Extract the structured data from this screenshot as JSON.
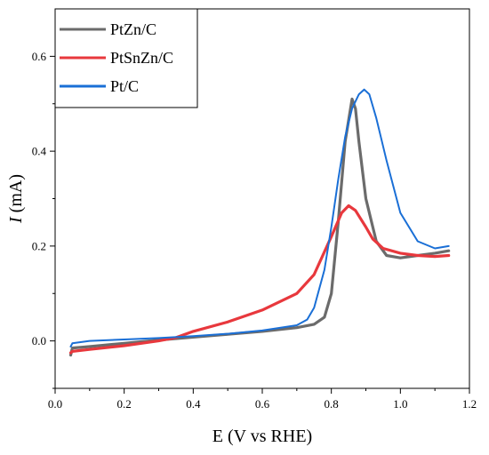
{
  "chart_data": {
    "type": "line",
    "xlabel": "E (V vs RHE)",
    "ylabel_italic": "I",
    "ylabel_rest": " (mA)",
    "xlim": [
      0.0,
      1.2
    ],
    "ylim": [
      -0.1,
      0.7
    ],
    "x_ticks": [
      0.0,
      0.2,
      0.4,
      0.6,
      0.8,
      1.0,
      1.2
    ],
    "x_tick_labels": [
      "0.0",
      "0.2",
      "0.4",
      "0.6",
      "0.8",
      "1.0",
      "1.2"
    ],
    "y_ticks": [
      0.0,
      0.2,
      0.4,
      0.6
    ],
    "y_tick_labels": [
      "0.0",
      "0.2",
      "0.4",
      "0.6"
    ],
    "grid": false,
    "legend_position": "top-left",
    "series": [
      {
        "name": "PtZn/C",
        "color": "#6b6b6b",
        "x": [
          0.045,
          0.05,
          0.1,
          0.2,
          0.3,
          0.4,
          0.5,
          0.6,
          0.7,
          0.75,
          0.78,
          0.8,
          0.82,
          0.84,
          0.86,
          0.87,
          0.88,
          0.9,
          0.93,
          0.96,
          1.0,
          1.05,
          1.1,
          1.14
        ],
        "y": [
          -0.03,
          -0.015,
          -0.012,
          -0.005,
          0.002,
          0.008,
          0.014,
          0.02,
          0.028,
          0.035,
          0.05,
          0.1,
          0.25,
          0.42,
          0.51,
          0.49,
          0.42,
          0.3,
          0.21,
          0.18,
          0.175,
          0.18,
          0.185,
          0.19
        ]
      },
      {
        "name": "PtSnZn/C",
        "color": "#e8383d",
        "x": [
          0.045,
          0.05,
          0.1,
          0.2,
          0.3,
          0.35,
          0.4,
          0.5,
          0.6,
          0.7,
          0.75,
          0.8,
          0.83,
          0.85,
          0.87,
          0.9,
          0.92,
          0.95,
          1.0,
          1.05,
          1.1,
          1.14
        ],
        "y": [
          -0.025,
          -0.022,
          -0.018,
          -0.01,
          0.0,
          0.007,
          0.02,
          0.04,
          0.065,
          0.1,
          0.14,
          0.22,
          0.27,
          0.285,
          0.275,
          0.24,
          0.215,
          0.195,
          0.185,
          0.18,
          0.178,
          0.18
        ]
      },
      {
        "name": "Pt/C",
        "color": "#1a6fd6",
        "x": [
          0.045,
          0.05,
          0.1,
          0.2,
          0.3,
          0.4,
          0.5,
          0.6,
          0.7,
          0.73,
          0.75,
          0.78,
          0.8,
          0.82,
          0.84,
          0.86,
          0.88,
          0.895,
          0.91,
          0.93,
          0.96,
          1.0,
          1.05,
          1.1,
          1.14
        ],
        "y": [
          -0.012,
          -0.005,
          0.0,
          0.003,
          0.006,
          0.01,
          0.015,
          0.022,
          0.033,
          0.045,
          0.07,
          0.15,
          0.24,
          0.34,
          0.43,
          0.49,
          0.52,
          0.53,
          0.52,
          0.47,
          0.38,
          0.27,
          0.21,
          0.195,
          0.2
        ]
      }
    ]
  }
}
